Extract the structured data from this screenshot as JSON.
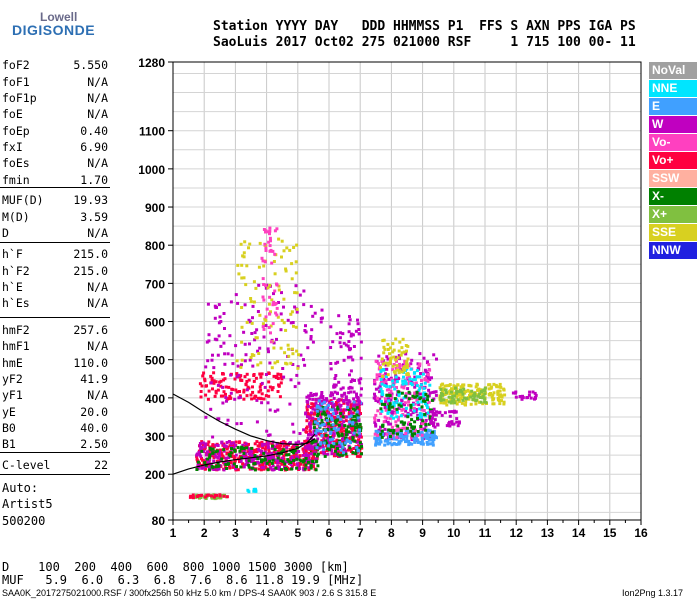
{
  "logo": {
    "line1": "Lowell",
    "line2": "DIGISONDE"
  },
  "header": {
    "line1": "Station YYYY DAY   DDD HHMMSS P1  FFS S AXN PPS IGA PS",
    "line2": "SaoLuis 2017 Oct02 275 021000 RSF     1 715 100 00- 11"
  },
  "params": [
    {
      "k": "foF2",
      "v": "5.550"
    },
    {
      "k": "foF1",
      "v": "N/A"
    },
    {
      "k": "foF1p",
      "v": "N/A"
    },
    {
      "k": "foE",
      "v": "N/A"
    },
    {
      "k": "foEp",
      "v": "0.40"
    },
    {
      "k": "fxI",
      "v": "6.90"
    },
    {
      "k": "foEs",
      "v": "N/A"
    },
    {
      "k": "fmin",
      "v": "1.70"
    },
    {
      "k": "MUF(D)",
      "v": "19.93"
    },
    {
      "k": "M(D)",
      "v": "3.59"
    },
    {
      "k": "D",
      "v": "N/A"
    },
    {
      "k": "h`F",
      "v": "215.0"
    },
    {
      "k": "h`F2",
      "v": "215.0"
    },
    {
      "k": "h`E",
      "v": "N/A"
    },
    {
      "k": "h`Es",
      "v": "N/A"
    },
    {
      "k": "hmF2",
      "v": "257.6"
    },
    {
      "k": "hmF1",
      "v": "N/A"
    },
    {
      "k": "hmE",
      "v": "110.0"
    },
    {
      "k": "yF2",
      "v": "41.9"
    },
    {
      "k": "yF1",
      "v": "N/A"
    },
    {
      "k": "yE",
      "v": "20.0"
    },
    {
      "k": "B0",
      "v": "40.0"
    },
    {
      "k": "B1",
      "v": "2.50"
    },
    {
      "k": "C-level",
      "v": "22"
    }
  ],
  "auto": {
    "l1": "Auto:",
    "l2": "Artist5",
    "l3": "500200"
  },
  "legend": [
    {
      "label": "NoVal",
      "color": "#a0a0a0"
    },
    {
      "label": "NNE",
      "color": "#00e5ff"
    },
    {
      "label": "E",
      "color": "#40a0ff"
    },
    {
      "label": "W",
      "color": "#c000c0"
    },
    {
      "label": "Vo-",
      "color": "#ff40c0"
    },
    {
      "label": "Vo+",
      "color": "#ff0040"
    },
    {
      "label": "SSW",
      "color": "#ffb0a0"
    },
    {
      "label": "X-",
      "color": "#008000"
    },
    {
      "label": "X+",
      "color": "#80c040"
    },
    {
      "label": "SSE",
      "color": "#d8d020"
    },
    {
      "label": "NNW",
      "color": "#2020e0"
    }
  ],
  "footer": {
    "d_line": "D    100  200  400  600  800 1000 1500 3000 [km]",
    "muf_line": "MUF   5.9  6.0  6.3  6.8  7.6  8.6 11.8 19.9 [MHz]",
    "file_line": "SAA0K_2017275021000.RSF / 300fx256h 50 kHz 5.0 km / DPS-4 SAA0K 903 / 2.6 S 315.8 E",
    "version": "Ion2Png 1.3.17"
  },
  "chart_data": {
    "type": "scatter",
    "xlim": [
      1,
      16
    ],
    "ylim": [
      80,
      1280
    ],
    "x_ticks": [
      "1",
      "2",
      "3",
      "4",
      "5",
      "6",
      "7",
      "8",
      "9",
      "10",
      "11",
      "12",
      "13",
      "14",
      "15",
      "16"
    ],
    "y_ticks": [
      {
        "v": 80,
        "label": "80"
      },
      {
        "v": 200,
        "label": "200"
      },
      {
        "v": 300,
        "label": "300"
      },
      {
        "v": 400,
        "label": "400"
      },
      {
        "v": 500,
        "label": "500"
      },
      {
        "v": 600,
        "label": "600"
      },
      {
        "v": 700,
        "label": "700"
      },
      {
        "v": 800,
        "label": "800"
      },
      {
        "v": 900,
        "label": "900"
      },
      {
        "v": 1000,
        "label": "1000"
      },
      {
        "v": 1100,
        "label": "1100"
      },
      {
        "v": 1280,
        "label": "1280"
      }
    ],
    "clusters": [
      {
        "f": [
          1.5,
          2.7
        ],
        "h": [
          140,
          150
        ],
        "n": 40,
        "color": "#80c040"
      },
      {
        "f": [
          1.5,
          2.7
        ],
        "h": [
          140,
          150
        ],
        "n": 20,
        "color": "#ff0040"
      },
      {
        "f": [
          3.2,
          3.8
        ],
        "h": [
          158,
          165
        ],
        "n": 8,
        "color": "#00e5ff"
      },
      {
        "f": [
          1.7,
          5.6
        ],
        "h": [
          215,
          290
        ],
        "n": 350,
        "color": "#ff0040"
      },
      {
        "f": [
          1.7,
          5.6
        ],
        "h": [
          215,
          290
        ],
        "n": 250,
        "color": "#c000c0"
      },
      {
        "f": [
          1.7,
          5.6
        ],
        "h": [
          215,
          280
        ],
        "n": 120,
        "color": "#008000"
      },
      {
        "f": [
          1.8,
          4.5
        ],
        "h": [
          400,
          470
        ],
        "n": 120,
        "color": "#ff0040"
      },
      {
        "f": [
          2.0,
          5.8
        ],
        "h": [
          300,
          700
        ],
        "n": 160,
        "color": "#c000c0"
      },
      {
        "f": [
          3.0,
          5.0
        ],
        "h": [
          480,
          820
        ],
        "n": 100,
        "color": "#d8d020"
      },
      {
        "f": [
          3.8,
          4.3
        ],
        "h": [
          550,
          850
        ],
        "n": 50,
        "color": "#ff40c0"
      },
      {
        "f": [
          5.2,
          7.0
        ],
        "h": [
          250,
          400
        ],
        "n": 280,
        "color": "#ff0040"
      },
      {
        "f": [
          5.2,
          7.0
        ],
        "h": [
          250,
          420
        ],
        "n": 220,
        "color": "#c000c0"
      },
      {
        "f": [
          5.4,
          7.0
        ],
        "h": [
          250,
          380
        ],
        "n": 120,
        "color": "#008000"
      },
      {
        "f": [
          5.5,
          7.0
        ],
        "h": [
          260,
          400
        ],
        "n": 80,
        "color": "#40a0ff"
      },
      {
        "f": [
          6.0,
          7.0
        ],
        "h": [
          380,
          620
        ],
        "n": 80,
        "color": "#c000c0"
      },
      {
        "f": [
          7.4,
          9.4
        ],
        "h": [
          290,
          520
        ],
        "n": 200,
        "color": "#c000c0"
      },
      {
        "f": [
          7.4,
          9.4
        ],
        "h": [
          280,
          320
        ],
        "n": 150,
        "color": "#40a0ff"
      },
      {
        "f": [
          7.4,
          9.2
        ],
        "h": [
          300,
          500
        ],
        "n": 150,
        "color": "#ff40c0"
      },
      {
        "f": [
          7.6,
          9.2
        ],
        "h": [
          350,
          480
        ],
        "n": 100,
        "color": "#00e5ff"
      },
      {
        "f": [
          7.6,
          9.3
        ],
        "h": [
          300,
          420
        ],
        "n": 80,
        "color": "#008000"
      },
      {
        "f": [
          7.6,
          8.5
        ],
        "h": [
          460,
          560
        ],
        "n": 60,
        "color": "#d8d020"
      },
      {
        "f": [
          9.5,
          11.6
        ],
        "h": [
          385,
          440
        ],
        "n": 170,
        "color": "#d8d020"
      },
      {
        "f": [
          9.5,
          11.0
        ],
        "h": [
          390,
          430
        ],
        "n": 60,
        "color": "#80c040"
      },
      {
        "f": [
          9.2,
          10.2
        ],
        "h": [
          330,
          370
        ],
        "n": 40,
        "color": "#c000c0"
      },
      {
        "f": [
          11.8,
          12.6
        ],
        "h": [
          400,
          420
        ],
        "n": 20,
        "color": "#c000c0"
      }
    ],
    "trace": {
      "f": [
        1.0,
        1.5,
        2.0,
        2.5,
        3.0,
        3.5,
        4.0,
        4.5,
        5.0,
        5.3,
        5.55
      ],
      "h": [
        200,
        214,
        224,
        232,
        238,
        243,
        248,
        256,
        268,
        283,
        305
      ],
      "color": "#000000"
    },
    "trace_upper": {
      "f": [
        1.0,
        1.5,
        2.0,
        2.5,
        3.0,
        3.5,
        4.0,
        4.5,
        5.0,
        5.3,
        5.55
      ],
      "h": [
        410,
        388,
        362,
        338,
        318,
        300,
        288,
        280,
        278,
        281,
        293
      ],
      "color": "#000000"
    }
  }
}
